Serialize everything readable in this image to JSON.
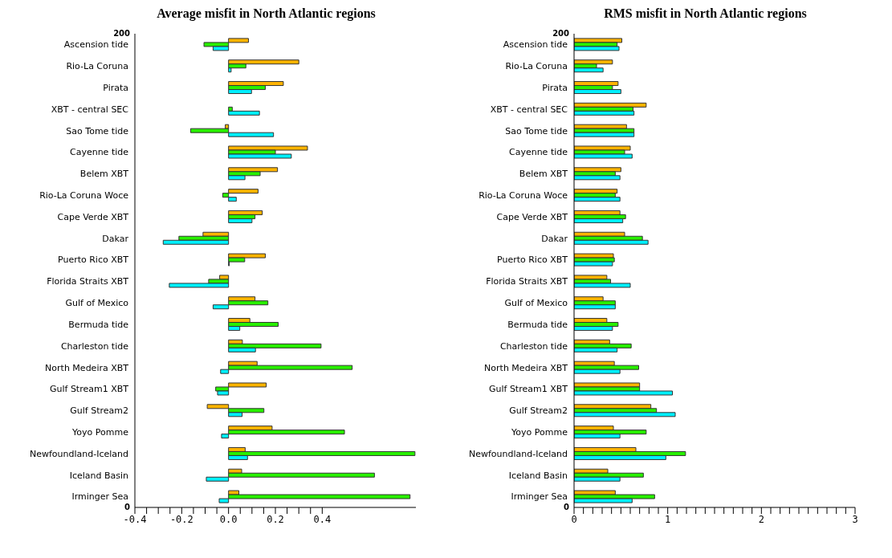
{
  "chart_data": [
    {
      "type": "bar",
      "orientation": "horizontal",
      "title": "Average misfit in North Atlantic regions",
      "categories": [
        "Ascension tide",
        "Rio-La Coruna",
        "Pirata",
        "XBT - central SEC",
        "Sao Tome tide",
        "Cayenne tide",
        "Belem XBT",
        "Rio-La Coruna Woce",
        "Cape Verde XBT",
        "Dakar",
        "Puerto Rico XBT",
        "Florida Straits XBT",
        "Gulf of Mexico",
        "Bermuda tide",
        "Charleston tide",
        "North Medeira XBT",
        "Gulf Stream1 XBT",
        "Gulf Stream2",
        "Yoyo Pomme",
        "Newfoundland-Iceland",
        "Iceland Basin",
        "Irminger Sea"
      ],
      "series": [
        {
          "color": "#ffb400",
          "values": [
            0.085,
            0.3,
            0.234,
            null,
            -0.014,
            0.337,
            0.209,
            0.126,
            0.144,
            -0.109,
            0.157,
            -0.038,
            0.113,
            0.091,
            0.059,
            0.122,
            0.161,
            -0.091,
            0.186,
            0.071,
            0.056,
            0.044
          ]
        },
        {
          "color": "#28f000",
          "values": [
            -0.105,
            0.074,
            0.157,
            0.016,
            -0.162,
            0.2,
            0.135,
            -0.025,
            0.113,
            -0.212,
            0.069,
            -0.085,
            0.168,
            0.212,
            0.395,
            0.528,
            -0.055,
            0.151,
            0.495,
            0.796,
            0.623,
            0.775
          ]
        },
        {
          "color": "#00f0ff",
          "values": [
            -0.066,
            0.011,
            0.098,
            0.132,
            0.192,
            0.268,
            0.07,
            0.033,
            0.1,
            -0.279,
            0.003,
            -0.253,
            -0.066,
            0.048,
            0.115,
            -0.034,
            -0.047,
            0.058,
            -0.03,
            0.081,
            -0.095,
            -0.04
          ]
        }
      ],
      "xlim": [
        -0.4,
        0.8
      ],
      "xticks": [
        -0.4,
        {
          "value": -0.35,
          "label": null
        },
        {
          "value": -0.3,
          "label": null
        },
        {
          "value": -0.25,
          "label": null
        },
        -0.2,
        {
          "value": -0.15,
          "label": null
        },
        {
          "value": -0.1,
          "label": null
        },
        {
          "value": -0.05,
          "label": null
        },
        {
          "value": 0,
          "label": "0.0"
        },
        {
          "value": 0.05,
          "label": null
        },
        {
          "value": 0.1,
          "label": null
        },
        {
          "value": 0.15,
          "label": null
        },
        0.2,
        {
          "value": 0.25,
          "label": null
        },
        {
          "value": 0.3,
          "label": null
        },
        {
          "value": 0.35,
          "label": null
        },
        0.4
      ],
      "annotations": [
        "200",
        "0"
      ]
    },
    {
      "type": "bar",
      "orientation": "horizontal",
      "title": "RMS misfit in North Atlantic regions",
      "categories": [
        "Ascension tide",
        "Rio-La Coruna",
        "Pirata",
        "XBT - central SEC",
        "Sao Tome tide",
        "Cayenne tide",
        "Belem XBT",
        "Rio-La Coruna Woce",
        "Cape Verde XBT",
        "Dakar",
        "Puerto Rico XBT",
        "Florida Straits XBT",
        "Gulf of Mexico",
        "Bermuda tide",
        "Charleston tide",
        "North Medeira XBT",
        "Gulf Stream1 XBT",
        "Gulf Stream2",
        "Yoyo Pomme",
        "Newfoundland-Iceland",
        "Iceland Basin",
        "Irminger Sea"
      ],
      "series": [
        {
          "color": "#ffb400",
          "values": [
            0.51,
            0.41,
            0.47,
            0.77,
            0.56,
            0.6,
            0.5,
            0.46,
            0.49,
            0.54,
            0.42,
            0.35,
            0.31,
            0.35,
            0.38,
            0.43,
            0.7,
            0.82,
            0.42,
            0.66,
            0.36,
            0.44
          ]
        },
        {
          "color": "#28f000",
          "values": [
            0.46,
            0.24,
            0.41,
            0.63,
            0.64,
            0.54,
            0.44,
            0.44,
            0.55,
            0.73,
            0.43,
            0.39,
            0.44,
            0.47,
            0.61,
            0.69,
            0.7,
            0.88,
            0.77,
            1.19,
            0.74,
            0.86
          ]
        },
        {
          "color": "#00f0ff",
          "values": [
            0.48,
            0.31,
            0.5,
            0.64,
            0.64,
            0.62,
            0.49,
            0.49,
            0.52,
            0.79,
            0.41,
            0.6,
            0.44,
            0.41,
            0.46,
            0.49,
            1.05,
            1.08,
            0.49,
            0.98,
            0.49,
            0.62
          ]
        }
      ],
      "xlim": [
        0,
        3
      ],
      "xticks": [
        0,
        {
          "value": 0.1,
          "label": null
        },
        {
          "value": 0.2,
          "label": null
        },
        {
          "value": 0.3,
          "label": null
        },
        {
          "value": 0.4,
          "label": null
        },
        {
          "value": 0.5,
          "label": null
        },
        {
          "value": 0.6,
          "label": null
        },
        {
          "value": 0.7,
          "label": null
        },
        {
          "value": 0.8,
          "label": null
        },
        {
          "value": 0.9,
          "label": null
        },
        1,
        {
          "value": 1.1,
          "label": null
        },
        {
          "value": 1.2,
          "label": null
        },
        {
          "value": 1.3,
          "label": null
        },
        {
          "value": 1.4,
          "label": null
        },
        {
          "value": 1.5,
          "label": null
        },
        {
          "value": 1.6,
          "label": null
        },
        {
          "value": 1.7,
          "label": null
        },
        {
          "value": 1.8,
          "label": null
        },
        {
          "value": 1.9,
          "label": null
        },
        2,
        {
          "value": 2.1,
          "label": null
        },
        {
          "value": 2.2,
          "label": null
        },
        {
          "value": 2.3,
          "label": null
        },
        {
          "value": 2.4,
          "label": null
        },
        {
          "value": 2.5,
          "label": null
        },
        {
          "value": 2.6,
          "label": null
        },
        {
          "value": 2.7,
          "label": null
        },
        {
          "value": 2.8,
          "label": null
        },
        {
          "value": 2.9,
          "label": null
        },
        3
      ],
      "annotations": [
        "200",
        "0"
      ]
    }
  ]
}
